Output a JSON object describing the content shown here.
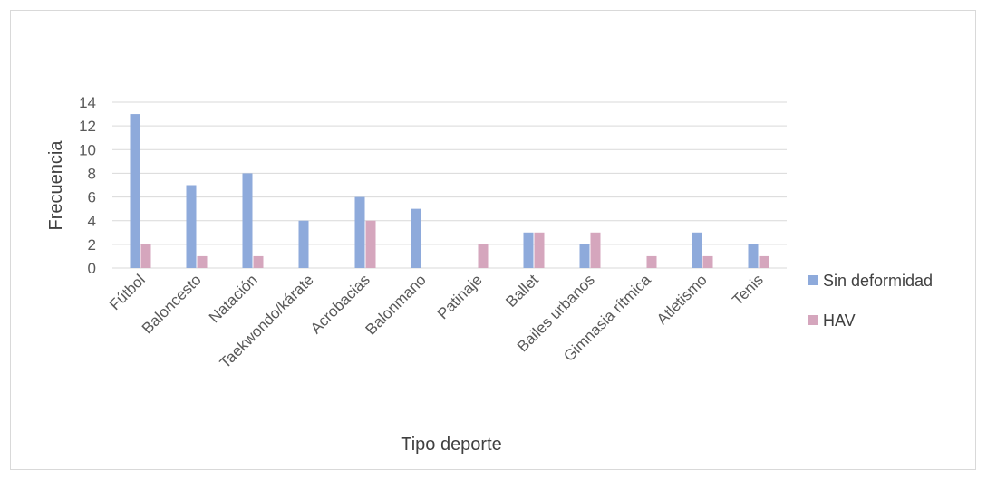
{
  "chart_data": {
    "type": "bar",
    "title": "",
    "xlabel": "Tipo deporte",
    "ylabel": "Frecuencia",
    "ylim": [
      0,
      14
    ],
    "yticks": [
      0,
      2,
      4,
      6,
      8,
      10,
      12,
      14
    ],
    "grid": true,
    "legend_position": "right",
    "categories": [
      "Fútbol",
      "Baloncesto",
      "Natación",
      "Taekwondo/kárate",
      "Acrobacias",
      "Balonmano",
      "Patinaje",
      "Ballet",
      "Bailes urbanos",
      "Gimnasia rítmica",
      "Atletismo",
      "Tenis"
    ],
    "series": [
      {
        "name": "Sin deformidad",
        "color": "#8eaadb",
        "values": [
          13,
          7,
          8,
          4,
          6,
          5,
          0,
          3,
          2,
          0,
          3,
          2
        ]
      },
      {
        "name": "HAV",
        "color": "#d5a6bd",
        "values": [
          2,
          1,
          1,
          0,
          4,
          0,
          2,
          3,
          3,
          1,
          1,
          1
        ]
      }
    ]
  }
}
